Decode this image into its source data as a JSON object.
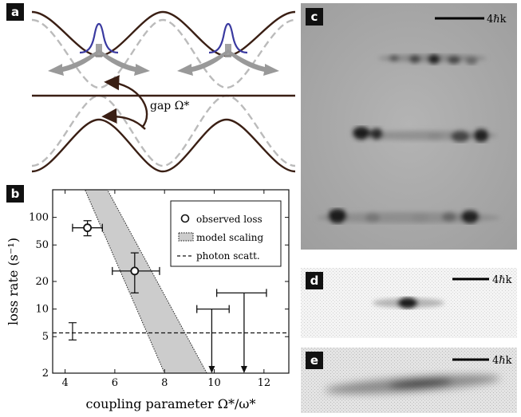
{
  "panels": {
    "a": {
      "label": "a",
      "gap_label": "gap Ω*"
    },
    "b": {
      "label": "b",
      "chart_data": {
        "type": "scatter",
        "xlabel": "coupling parameter Ω*/ω*",
        "ylabel": "loss rate (s⁻¹)",
        "xlim": [
          3.5,
          13
        ],
        "ylim": [
          2,
          200
        ],
        "yscale": "log",
        "xticks": [
          4,
          6,
          8,
          10,
          12
        ],
        "yticks": [
          2,
          5,
          10,
          20,
          50,
          100
        ],
        "legend": {
          "placement": "top-right",
          "entries": [
            "observed loss",
            "model scaling",
            "photon scatt."
          ]
        },
        "observed_loss": [
          {
            "x": 4.9,
            "y": 77,
            "xerr": [
              4.3,
              5.5
            ],
            "yerr": [
              63,
              92
            ]
          },
          {
            "x": 6.8,
            "y": 26,
            "xerr": [
              5.9,
              7.8
            ],
            "yerr": [
              15,
              41
            ]
          }
        ],
        "upper_limits": [
          {
            "x": 9.9,
            "xerr": [
              9.3,
              10.6
            ],
            "y_top": 10,
            "y_bottom": 2
          },
          {
            "x": 11.2,
            "xerr": [
              10.1,
              12.1
            ],
            "y_top": 15,
            "y_bottom": 2
          }
        ],
        "photon_scattering": {
          "y": 5.5,
          "errorbar": {
            "x": 4.3,
            "y_low": 4.6,
            "y_high": 7.1
          }
        },
        "model_band": {
          "upper": [
            {
              "x": 5.7,
              "y": 200
            },
            {
              "x": 9.7,
              "y": 2
            }
          ],
          "lower": [
            {
              "x": 4.8,
              "y": 200
            },
            {
              "x": 8.0,
              "y": 2
            }
          ]
        }
      }
    },
    "c": {
      "label": "c",
      "scale_label": "4ℏk"
    },
    "d": {
      "label": "d",
      "scale_label": "4ℏk"
    },
    "e": {
      "label": "e",
      "scale_label": "4ℏk"
    }
  }
}
